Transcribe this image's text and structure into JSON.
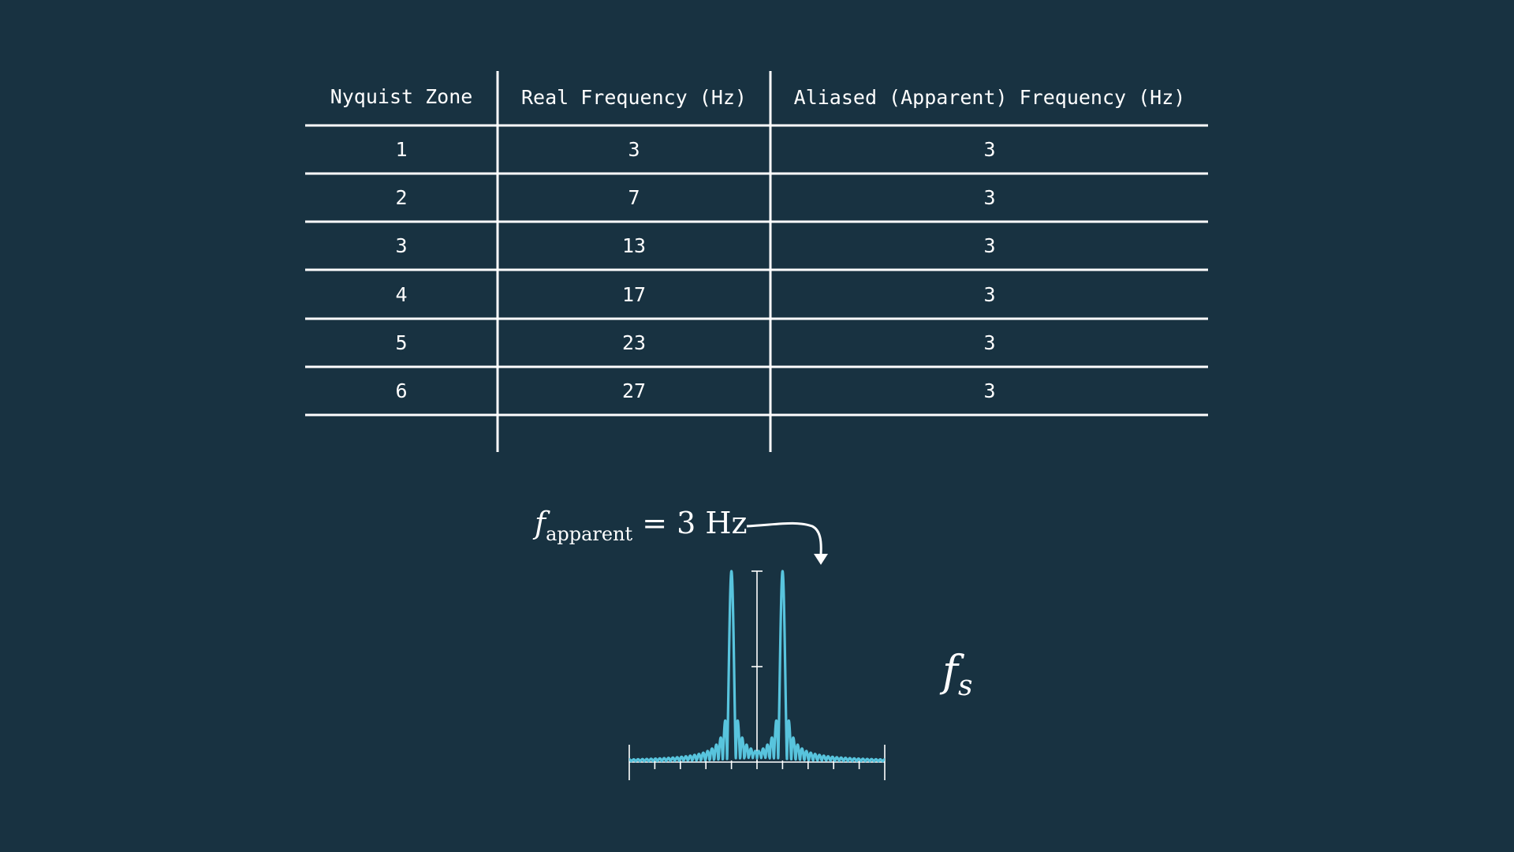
{
  "table": {
    "headers": [
      "Nyquist Zone",
      "Real Frequency (Hz)",
      "Aliased (Apparent) Frequency (Hz)"
    ],
    "rows": [
      [
        "1",
        "3",
        "3"
      ],
      [
        "2",
        "7",
        "3"
      ],
      [
        "3",
        "13",
        "3"
      ],
      [
        "4",
        "17",
        "3"
      ],
      [
        "5",
        "23",
        "3"
      ],
      [
        "6",
        "27",
        "3"
      ]
    ]
  },
  "plot": {
    "annotation_symbol": "f",
    "annotation_subscript": "apparent",
    "annotation_value": "= 3 Hz",
    "fs_symbol": "f",
    "fs_subscript": "s",
    "curve_color": "#58c4dd",
    "peak_positions": [
      -0.5,
      0.5
    ],
    "x_range": [
      -2.5,
      2.5
    ],
    "x_tick_step": 0.5,
    "y_ticks": 3
  },
  "colors": {
    "background": "#183241",
    "foreground": "#ffffff",
    "accent": "#58c4dd"
  }
}
